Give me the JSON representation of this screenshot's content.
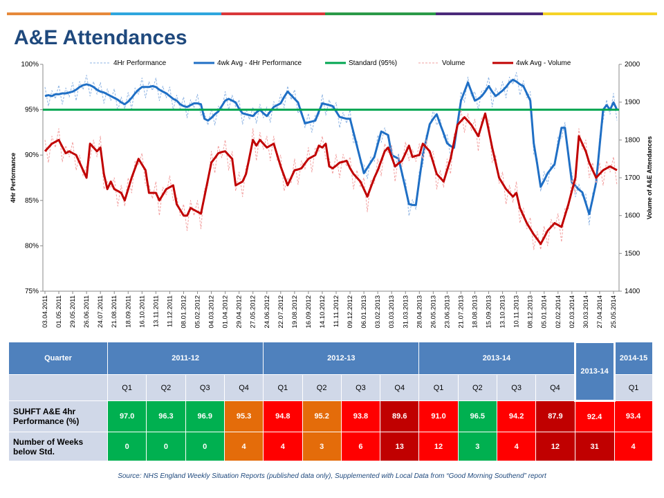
{
  "chart_data": {
    "type": "line",
    "title": "A&E Attendances",
    "ylabel": "4Hr Performance",
    "y2label": "Volume of A&E Attendances",
    "categories": [
      "03.04.2011",
      null,
      null,
      null,
      "01.05.2011",
      null,
      null,
      null,
      "29.05.2011",
      null,
      null,
      null,
      "26.06.2011",
      null,
      null,
      null,
      "24.07.2011",
      null,
      null,
      null,
      "21.08.2011",
      null,
      null,
      null,
      "18.09.2011",
      null,
      null,
      null,
      "16.10.2011",
      null,
      null,
      null,
      "13.11.2011",
      null,
      null,
      null,
      "11.12.2011",
      null,
      null,
      null,
      "08.01.2012",
      null,
      null,
      null,
      "05.02.2012",
      null,
      null,
      null,
      "04.03.2012",
      null,
      null,
      null,
      "01.04.2012",
      null,
      null,
      null,
      "29.04.2012",
      null,
      null,
      null,
      "27.05.2012",
      null,
      null,
      null,
      "24.06.2012",
      null,
      null,
      null,
      "22.07.2012",
      null,
      null,
      null,
      "19.08.2012",
      null,
      null,
      null,
      "16.09.2012",
      null,
      null,
      null,
      "14.10.2012",
      null,
      null,
      null,
      "11.11.2012",
      null,
      null,
      null,
      "09.12.2012",
      null,
      null,
      null,
      "06.01.2013",
      null,
      null,
      null,
      "03.02.2013",
      null,
      null,
      null,
      "03.03.2013",
      null,
      null,
      null,
      "31.03.2013",
      null,
      null,
      null,
      "28.04.2013",
      null,
      null,
      null,
      "26.05.2013",
      null,
      null,
      null,
      "23.06.2013",
      null,
      null,
      null,
      "21.07.2013",
      null,
      null,
      null,
      "18.08.2013",
      null,
      null,
      null,
      "15.09.2013",
      null,
      null,
      null,
      "13.10.2013",
      null,
      null,
      null,
      "10.11.2013",
      null,
      null,
      null,
      "08.12.2013",
      null,
      null,
      null,
      "05.01.2014",
      null,
      null,
      null,
      "02.02.2014",
      null,
      null,
      null,
      "02.03.2014",
      null,
      null,
      null,
      "30.03.2014",
      null,
      null,
      null,
      "27.04.2014",
      null,
      null,
      null,
      "25.05.2014",
      null
    ],
    "series": [
      {
        "name": "4Hr Performance",
        "color": "#8eb4e3",
        "dashed": true,
        "width": 1,
        "values": [
          97.5,
          95.4,
          97.1,
          96.2,
          97.7,
          95.6,
          97.4,
          96.4,
          98.0,
          96.0,
          98.1,
          97.2,
          98.8,
          96.5,
          98.1,
          96.7,
          98.0,
          95.7,
          97.3,
          96.0,
          97.3,
          94.9,
          96.4,
          95.1,
          96.9,
          95.1,
          97.4,
          96.7,
          98.5,
          96.3,
          98.1,
          97.1,
          98.5,
          96.0,
          97.6,
          96.3,
          97.5,
          95.0,
          96.6,
          95.1,
          96.4,
          94.1,
          96.1,
          95.2,
          96.7,
          94.4,
          94.6,
          93.3,
          95.1,
          93.3,
          95.4,
          94.9,
          97.0,
          95.0,
          96.6,
          95.3,
          96.1,
          93.4,
          95.1,
          93.9,
          95.3,
          93.5,
          95.6,
          94.1,
          95.3,
          93.6,
          95.9,
          95.0,
          96.7,
          95.2,
          97.6,
          96.1,
          97.2,
          94.6,
          95.2,
          93.0,
          94.6,
          92.5,
          94.4,
          94.3,
          96.7,
          94.4,
          96.1,
          94.9,
          95.8,
          93.0,
          94.7,
          93.5,
          95.0,
          91.3,
          91.6,
          89.0,
          89.0,
          87.4,
          89.8,
          89.3,
          92.2,
          91.4,
          93.0,
          91.7,
          91.0,
          88.6,
          90.2,
          87.5,
          87.3,
          83.3,
          85.1,
          84.0,
          88.3,
          88.8,
          92.3,
          92.9,
          95.0,
          93.3,
          94.0,
          91.9,
          92.3,
          89.8,
          91.4,
          92.9,
          97.0,
          95.8,
          98.6,
          96.5,
          97.0,
          95.0,
          97.1,
          97.1,
          98.6,
          95.3,
          97.4,
          96.6,
          98.1,
          96.3,
          98.6,
          97.8,
          99.1,
          96.6,
          98.2,
          96.3,
          97.0,
          90.1,
          89.6,
          86.0,
          88.2,
          86.8,
          89.1,
          88.5,
          92.0,
          91.8,
          93.6,
          89.5,
          88.0,
          85.4,
          86.8,
          85.4,
          85.7,
          82.3,
          85.8,
          86.5,
          92.0,
          93.8,
          96.1,
          94.5,
          96.8,
          93.8
        ]
      },
      {
        "name": "4wk Avg - 4Hr Performance",
        "color": "#1f6fc5",
        "width": 3,
        "values": [
          96.5,
          96.6,
          96.5,
          96.7,
          96.7,
          96.8,
          96.8,
          96.9,
          97.0,
          97.2,
          97.5,
          97.7,
          97.8,
          97.7,
          97.5,
          97.2,
          97.0,
          96.9,
          96.7,
          96.5,
          96.3,
          96.1,
          95.8,
          95.6,
          95.9,
          96.3,
          96.8,
          97.2,
          97.5,
          97.5,
          97.5,
          97.6,
          97.5,
          97.2,
          97.0,
          96.8,
          96.5,
          96.2,
          96.0,
          95.6,
          95.4,
          95.3,
          95.5,
          95.7,
          95.7,
          95.6,
          94.0,
          93.8,
          94.1,
          94.5,
          94.8,
          95.4,
          96.0,
          96.2,
          96.0,
          95.8,
          95.1,
          94.6,
          94.5,
          94.4,
          94.3,
          94.7,
          95.0,
          94.6,
          94.3,
          94.8,
          95.3,
          95.5,
          95.7,
          96.4,
          97.0,
          96.6,
          96.2,
          95.8,
          94.6,
          93.5,
          93.6,
          93.7,
          93.8,
          94.8,
          95.7,
          95.6,
          95.5,
          95.4,
          94.8,
          94.2,
          94.1,
          94.0,
          94.0,
          92.5,
          91.0,
          89.5,
          88.0,
          88.6,
          89.2,
          89.8,
          91.2,
          92.6,
          92.4,
          92.2,
          90.0,
          89.8,
          89.6,
          88.0,
          86.3,
          84.6,
          84.5,
          84.5,
          87.3,
          90.0,
          91.7,
          93.4,
          94.0,
          94.5,
          93.4,
          92.4,
          91.3,
          91.0,
          90.8,
          93.4,
          96.0,
          97.0,
          98.0,
          97.0,
          96.0,
          96.2,
          96.5,
          97.0,
          97.6,
          97.0,
          96.5,
          96.8,
          97.1,
          97.5,
          98.0,
          98.3,
          98.1,
          97.8,
          97.6,
          96.8,
          96.0,
          91.3,
          89.0,
          86.5,
          87.2,
          88.0,
          88.5,
          89.0,
          91.0,
          93.0,
          93.0,
          90.0,
          87.0,
          86.6,
          86.2,
          85.9,
          84.7,
          83.5,
          85.2,
          87.0,
          91.0,
          95.0,
          95.5,
          95.0,
          95.8,
          95.0
        ]
      },
      {
        "name": "Standard (95%)",
        "color": "#00a550",
        "width": 3,
        "value": 95
      },
      {
        "name": "Volume",
        "color": "#f2a0a0",
        "dashed": true,
        "width": 1,
        "axis": "y2",
        "values": [
          1800,
          1740,
          1810,
          1780,
          1830,
          1742,
          1785,
          1755,
          1795,
          1720,
          1760,
          1705,
          1730,
          1750,
          1800,
          1755,
          1810,
          1670,
          1690,
          1675,
          1700,
          1625,
          1680,
          1625,
          1700,
          1660,
          1745,
          1735,
          1765,
          1680,
          1680,
          1645,
          1690,
          1600,
          1675,
          1655,
          1705,
          1640,
          1650,
          1600,
          1630,
          1560,
          1640,
          1600,
          1640,
          1565,
          1670,
          1680,
          1770,
          1712,
          1785,
          1753,
          1800,
          1720,
          1770,
          1665,
          1715,
          1650,
          1730,
          1740,
          1830,
          1745,
          1820,
          1775,
          1810,
          1745,
          1810,
          1745,
          1760,
          1665,
          1700,
          1685,
          1750,
          1682,
          1745,
          1723,
          1780,
          1715,
          1780,
          1770,
          1810,
          1750,
          1750,
          1710,
          1762,
          1700,
          1762,
          1730,
          1755,
          1670,
          1720,
          1675,
          1700,
          1610,
          1695,
          1685,
          1750,
          1705,
          1790,
          1765,
          1785,
          1690,
          1758,
          1730,
          1795,
          1745,
          1775,
          1743,
          1790,
          1750,
          1800,
          1755,
          1770,
          1670,
          1720,
          1675,
          1750,
          1710,
          1815,
          1825,
          1880,
          1820,
          1870,
          1825,
          1855,
          1770,
          1860,
          1855,
          1855,
          1740,
          1760,
          1685,
          1715,
          1630,
          1680,
          1635,
          1690,
          1580,
          1620,
          1565,
          1595,
          1510,
          1558,
          1510,
          1572,
          1520,
          1590,
          1565,
          1605,
          1530,
          1620,
          1615,
          1695,
          1660,
          1830,
          1775,
          1800,
          1700,
          1740,
          1685,
          1740,
          1680,
          1745,
          1715,
          1755,
          1680
        ]
      },
      {
        "name": "4wk Avg - Volume",
        "color": "#c00000",
        "width": 3,
        "axis": "y2",
        "values": [
          1770,
          1780,
          1790,
          1795,
          1800,
          1782,
          1765,
          1770,
          1765,
          1760,
          1740,
          1720,
          1700,
          1790,
          1780,
          1770,
          1780,
          1710,
          1670,
          1690,
          1670,
          1665,
          1660,
          1640,
          1670,
          1700,
          1725,
          1750,
          1735,
          1720,
          1660,
          1660,
          1660,
          1640,
          1655,
          1670,
          1675,
          1680,
          1630,
          1615,
          1600,
          1600,
          1620,
          1615,
          1610,
          1605,
          1650,
          1695,
          1740,
          1752,
          1765,
          1768,
          1770,
          1760,
          1750,
          1680,
          1685,
          1690,
          1710,
          1755,
          1800,
          1785,
          1800,
          1790,
          1780,
          1785,
          1790,
          1760,
          1730,
          1705,
          1680,
          1700,
          1720,
          1722,
          1725,
          1738,
          1750,
          1755,
          1760,
          1785,
          1780,
          1790,
          1730,
          1725,
          1732,
          1740,
          1742,
          1745,
          1725,
          1710,
          1700,
          1690,
          1670,
          1650,
          1675,
          1700,
          1720,
          1745,
          1770,
          1780,
          1755,
          1730,
          1738,
          1745,
          1765,
          1785,
          1755,
          1758,
          1760,
          1790,
          1780,
          1770,
          1740,
          1710,
          1700,
          1690,
          1720,
          1750,
          1795,
          1840,
          1850,
          1860,
          1850,
          1840,
          1825,
          1810,
          1840,
          1870,
          1825,
          1780,
          1740,
          1700,
          1685,
          1670,
          1660,
          1650,
          1660,
          1620,
          1600,
          1580,
          1565,
          1550,
          1538,
          1525,
          1542,
          1560,
          1570,
          1580,
          1575,
          1570,
          1600,
          1630,
          1665,
          1700,
          1810,
          1790,
          1770,
          1740,
          1720,
          1700,
          1710,
          1720,
          1725,
          1730,
          1725,
          1720
        ]
      }
    ],
    "ylim": [
      75,
      100
    ],
    "yticks": [
      {
        "value": 75,
        "label": "75%"
      },
      {
        "value": 80,
        "label": "80%"
      },
      {
        "value": 85,
        "label": "85%"
      },
      {
        "value": 90,
        "label": "90%"
      },
      {
        "value": 95,
        "label": "95%"
      },
      {
        "value": 100,
        "label": "100%"
      }
    ],
    "y2lim": [
      1400,
      2000
    ],
    "y2ticks": [
      1400,
      1500,
      1600,
      1700,
      1800,
      1900,
      2000
    ],
    "grid": false,
    "legend": "top"
  },
  "table": {
    "header": [
      "Quarter",
      "2011-12",
      "2012-13",
      "2013-14",
      "2013-14",
      "2014-15"
    ],
    "quarters": [
      "Q1",
      "Q2",
      "Q3",
      "Q4",
      "Q1",
      "Q2",
      "Q3",
      "Q4",
      "Q1",
      "Q2",
      "Q3",
      "Q4",
      "Q1"
    ],
    "rows": [
      {
        "label": "SUHFT A&E 4hr Performance (%)",
        "cells": [
          "97.0",
          "96.3",
          "96.9",
          "95.3",
          "94.8",
          "95.2",
          "93.8",
          "89.6",
          "91.0",
          "96.5",
          "94.2",
          "87.9",
          "92.4",
          "93.4"
        ],
        "colors": [
          "#00b050",
          "#00b050",
          "#00b050",
          "#e46c0a",
          "#ff0000",
          "#e46c0a",
          "#ff0000",
          "#c00000",
          "#ff0000",
          "#00b050",
          "#ff0000",
          "#c00000",
          "#ff0000",
          "#ff0000"
        ]
      },
      {
        "label": "Number of Weeks below Std.",
        "cells": [
          "0",
          "0",
          "0",
          "4",
          "4",
          "3",
          "6",
          "13",
          "12",
          "3",
          "4",
          "12",
          "31",
          "4"
        ],
        "colors": [
          "#00b050",
          "#00b050",
          "#00b050",
          "#e46c0a",
          "#ff0000",
          "#e46c0a",
          "#ff0000",
          "#c00000",
          "#ff0000",
          "#00b050",
          "#ff0000",
          "#c00000",
          "#c00000",
          "#ff0000"
        ]
      }
    ]
  },
  "source": "Source: NHS England Weekly Situation Reports (published data only), Supplemented  with Local Data from “Good Morning Southend” report"
}
